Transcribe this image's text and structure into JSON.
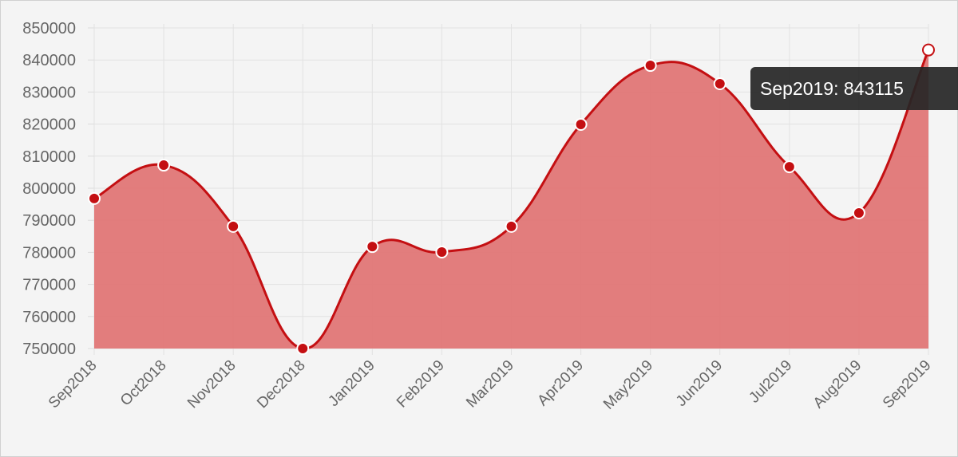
{
  "chart_data": {
    "type": "area",
    "categories": [
      "Sep2018",
      "Oct2018",
      "Nov2018",
      "Dec2018",
      "Jan2019",
      "Feb2019",
      "Mar2019",
      "Apr2019",
      "May2019",
      "Jun2019",
      "Jul2019",
      "Aug2019",
      "Sep2019"
    ],
    "values": [
      796800,
      807200,
      788100,
      750000,
      781800,
      780100,
      788100,
      819900,
      838300,
      832600,
      806700,
      792300,
      843115
    ],
    "color": "#c40f12",
    "fill": "#e07676",
    "ylim": [
      750000,
      850000
    ],
    "yticks": [
      750000,
      760000,
      770000,
      780000,
      790000,
      800000,
      810000,
      820000,
      830000,
      840000,
      850000
    ],
    "grid": true,
    "tooltip": "Sep2019: 843115"
  }
}
